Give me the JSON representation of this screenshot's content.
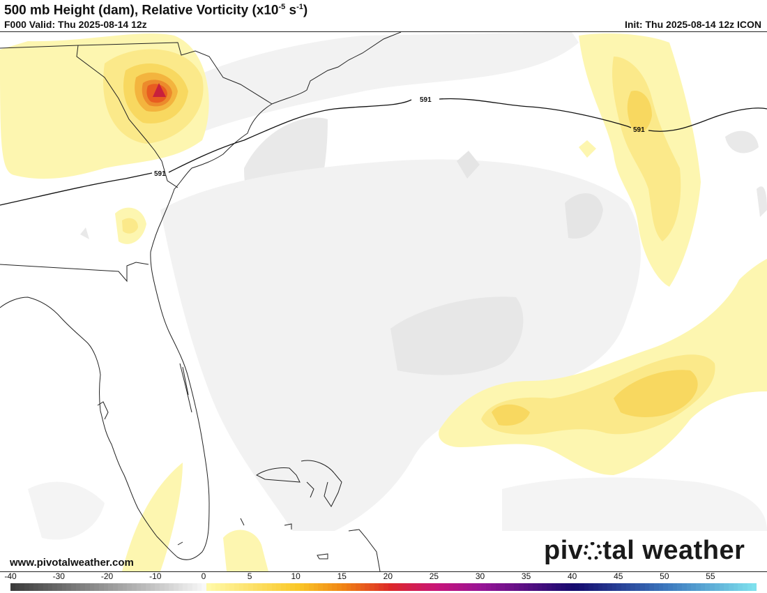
{
  "header": {
    "title_main": "500 mb Height (dam), Relative Vorticity (x10",
    "title_exp1": "-5",
    "title_mid": " s",
    "title_exp2": "-1",
    "title_end": ")",
    "valid": "F000 Valid: Thu 2025-08-14 12z",
    "init": "Init: Thu 2025-08-14 12z ICON"
  },
  "map": {
    "contour_label": "591",
    "contour_labels": [
      "591",
      "591",
      "591"
    ],
    "colors": {
      "light_gray": "#f3f3f3",
      "yellow_light": "#fdf6b0",
      "yellow": "#fbe98a",
      "yellow_dark": "#f8d860",
      "orange": "#f0a030",
      "red": "#e8601e",
      "crimson": "#c8203c"
    }
  },
  "footer": {
    "url": "www.pivotalweather.com",
    "brand_left": "piv",
    "brand_right": "tal weather"
  },
  "colorbar": {
    "min": -40,
    "max": 60,
    "labels": [
      "-40",
      "-30",
      "-20",
      "-10",
      "0",
      "5",
      "10",
      "15",
      "20",
      "25",
      "30",
      "35",
      "40",
      "45",
      "50",
      "55"
    ],
    "label_values": [
      -40,
      -30,
      -20,
      -10,
      0,
      5,
      10,
      15,
      20,
      25,
      30,
      35,
      40,
      45,
      50,
      55
    ]
  }
}
